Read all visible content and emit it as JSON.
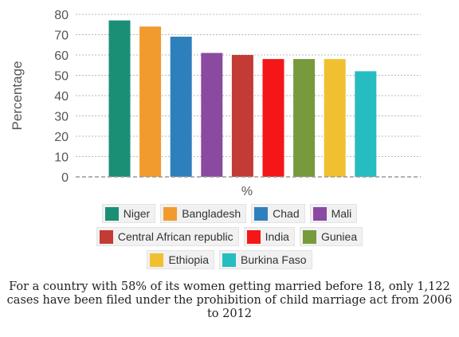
{
  "chart_data": {
    "type": "bar",
    "categories": [
      "Niger",
      "Bangladesh",
      "Chad",
      "Mali",
      "Central African republic",
      "India",
      "Guniea",
      "Ethiopia",
      "Burkina Faso"
    ],
    "values": [
      77,
      74,
      69,
      61,
      60,
      58,
      58,
      58,
      52
    ],
    "colors": [
      "#1b8f76",
      "#f19b2e",
      "#2e80bd",
      "#8a4aa0",
      "#c23b34",
      "#f51717",
      "#779a3c",
      "#f0c030",
      "#27bcc0"
    ],
    "ylabel": "Percentage",
    "xlabel": "%",
    "ylim": [
      0,
      80
    ],
    "yticks": [
      0,
      10,
      20,
      30,
      40,
      50,
      60,
      70,
      80
    ],
    "grid": true,
    "legend_position": "bottom"
  },
  "caption": "For a country with 58% of its women getting married before 18, only 1,122 cases have been filed under the prohibition of child marriage act from 2006 to 2012"
}
